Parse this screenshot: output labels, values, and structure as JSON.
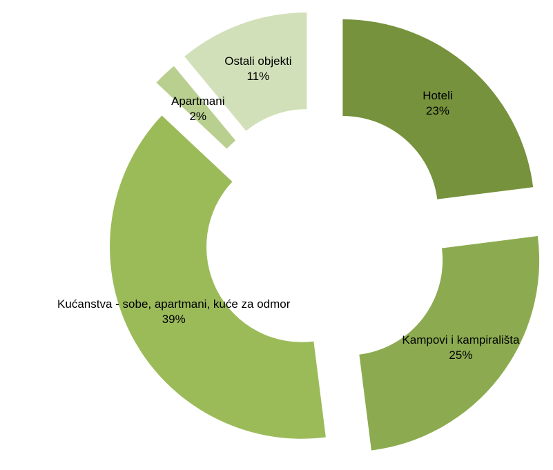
{
  "chart_data": {
    "type": "donut",
    "categories": [
      "Hoteli",
      "Kampovi i kampirališta",
      "Kućanstva - sobe, apartmani, kuće za odmor",
      "Apartmani",
      "Ostali objekti"
    ],
    "values": [
      23,
      25,
      39,
      2,
      11
    ],
    "value_labels": [
      "23%",
      "25%",
      "39%",
      "2%",
      "11%"
    ],
    "colors": [
      "#76923c",
      "#8cab50",
      "#9bbb59",
      "#b9cf8f",
      "#d2e0ba"
    ]
  }
}
